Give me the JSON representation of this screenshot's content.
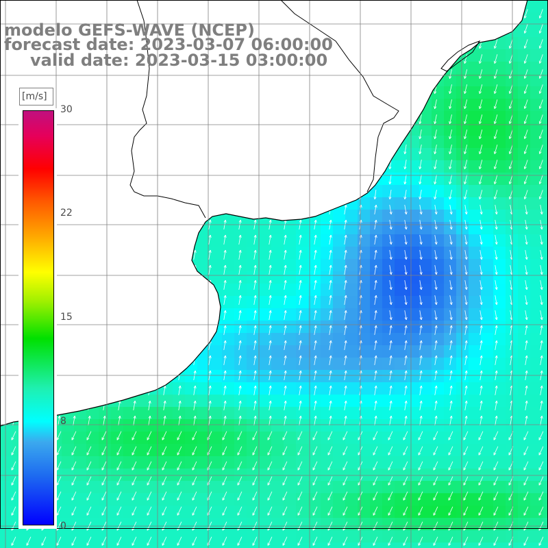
{
  "title": {
    "line1": "modelo GEFS-WAVE (NCEP)",
    "line2": "forecast date: 2023-03-07 06:00:00",
    "line3": "valid date: 2023-03-15 03:00:00"
  },
  "colorbar": {
    "units": "[m/s]",
    "ticks": [
      "30",
      "22",
      "15",
      "8",
      "0"
    ],
    "range": [
      0,
      30
    ],
    "colors": [
      "#0000ff",
      "#3ba9ee",
      "#00ffff",
      "#00e000",
      "#ffff00",
      "#ffa500",
      "#ff0000",
      "#c0107f"
    ]
  },
  "map": {
    "variable": "wind speed with direction arrows",
    "land_color": "#ffffff",
    "coastline_color": "#000000",
    "grid_color": "#808080",
    "arrow_color": "#ffffff"
  }
}
